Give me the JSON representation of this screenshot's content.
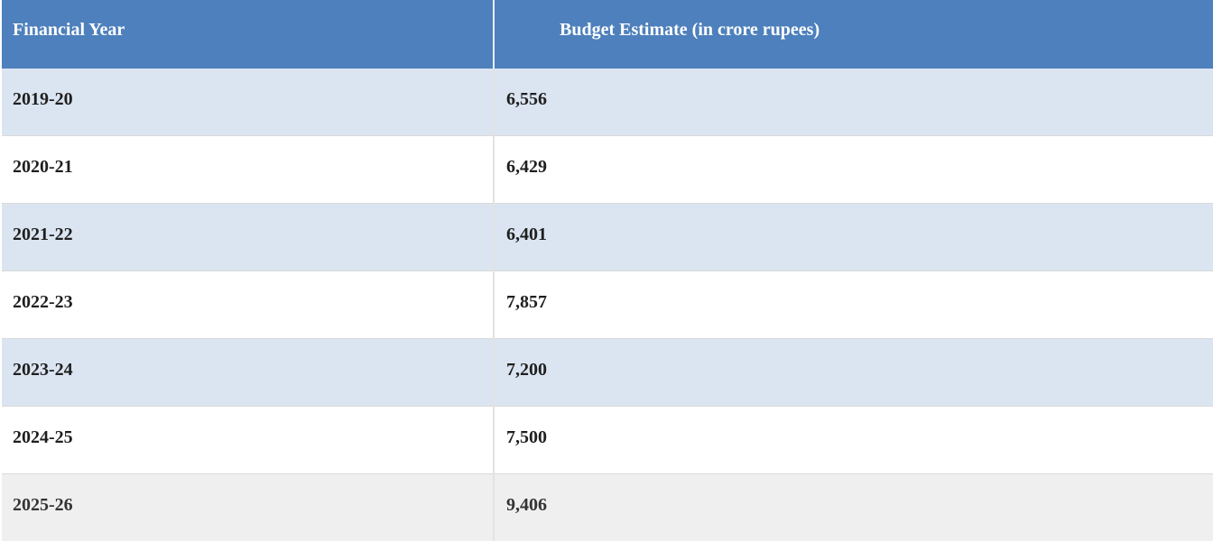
{
  "table": {
    "columns": [
      {
        "label": "Financial Year"
      },
      {
        "label": "Budget Estimate (in crore rupees)"
      }
    ],
    "rows": [
      {
        "financial_year": "2019-20",
        "budget_estimate": "6,556"
      },
      {
        "financial_year": "2020-21",
        "budget_estimate": "6,429"
      },
      {
        "financial_year": "2021-22",
        "budget_estimate": "6,401"
      },
      {
        "financial_year": "2022-23",
        "budget_estimate": "7,857"
      },
      {
        "financial_year": "2023-24",
        "budget_estimate": "7,200"
      },
      {
        "financial_year": "2024-25",
        "budget_estimate": "7,500"
      },
      {
        "financial_year": "2025-26",
        "budget_estimate": "9,406"
      }
    ]
  },
  "chart_data": {
    "type": "table",
    "columns": [
      "Financial Year",
      "Budget Estimate (in crore rupees)"
    ],
    "categories": [
      "2019-20",
      "2020-21",
      "2021-22",
      "2022-23",
      "2023-24",
      "2024-25",
      "2025-26"
    ],
    "values": [
      6556,
      6429,
      6401,
      7857,
      7200,
      7500,
      9406
    ],
    "unit": "crore rupees"
  },
  "colors": {
    "header_bg": "#4d80bc",
    "header_text": "#ffffff",
    "header_divider": "#e9eff6",
    "row_alt_bg": "#dbe5f1",
    "row_bg": "#ffffff",
    "row_last_bg": "#efefef",
    "row_separator": "#d9d9d9",
    "column_divider": "#e2e2e2",
    "body_text": "#1f1f1f",
    "last_row_text": "#333333"
  }
}
